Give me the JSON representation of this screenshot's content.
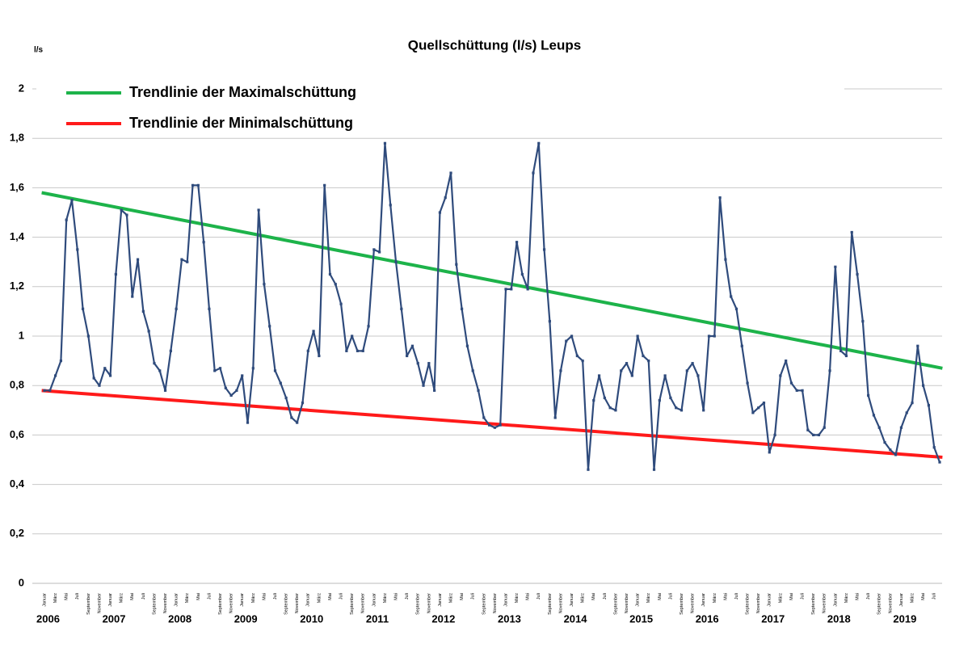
{
  "chart_data": {
    "type": "line",
    "title": "Quellschüttung (l/s) Leups",
    "y_label": "l/s",
    "categories": [
      "Januar",
      null,
      "März",
      null,
      "Mai",
      null,
      "Juli",
      null,
      "September",
      null,
      "November",
      null,
      "Januar",
      null,
      "März",
      null,
      "Mai",
      null,
      "Juli",
      null,
      "September",
      null,
      "November",
      null,
      "Januar",
      null,
      "März",
      null,
      "Mai",
      null,
      "Juli",
      null,
      "September",
      null,
      "November",
      null,
      "Januar",
      null,
      "März",
      null,
      "Mai",
      null,
      "Juli",
      null,
      "September",
      null,
      "November",
      null,
      "Januar",
      null,
      "März",
      null,
      "Mai",
      null,
      "Juli",
      null,
      "September",
      null,
      "November",
      null,
      "Januar",
      null,
      "März",
      null,
      "Mai",
      null,
      "Juli",
      null,
      "September",
      null,
      "November",
      null,
      "Januar",
      null,
      "März",
      null,
      "Mai",
      null,
      "Juli",
      null,
      "September",
      null,
      "November",
      null,
      "Januar",
      null,
      "März",
      null,
      "Mai",
      null,
      "Juli",
      null,
      "September",
      null,
      "November",
      null,
      "Januar",
      null,
      "März",
      null,
      "Mai",
      null,
      "Juli",
      null,
      "September",
      null,
      "November",
      null,
      "Januar",
      null,
      "März",
      null,
      "Mai",
      null,
      "Juli",
      null,
      "September",
      null,
      "November",
      null,
      "Januar",
      null,
      "März",
      null,
      "Mai",
      null,
      "Juli",
      null,
      "September",
      null,
      "November",
      null,
      "Januar",
      null,
      "März",
      null,
      "Mai",
      null,
      "Juli",
      null,
      "September",
      null,
      "November",
      null,
      "Januar",
      null,
      "März",
      null,
      "Mai",
      null,
      "Juli",
      null,
      "September",
      null,
      "November",
      null,
      "Januar",
      null,
      "März",
      null,
      "Mai",
      null,
      "Juli",
      null
    ],
    "year_labels": [
      "2006",
      "2007",
      "2008",
      "2009",
      "2010",
      "2011",
      "2012",
      "2013",
      "2014",
      "2015",
      "2016",
      "2017",
      "2018",
      "2019"
    ],
    "series": [
      {
        "color": "#2f4b7c",
        "values": [
          0.78,
          0.78,
          0.84,
          0.9,
          1.47,
          1.55,
          1.35,
          1.11,
          1.0,
          0.83,
          0.8,
          0.87,
          0.84,
          1.25,
          1.51,
          1.49,
          1.16,
          1.31,
          1.1,
          1.02,
          0.89,
          0.86,
          0.78,
          0.94,
          1.11,
          1.31,
          1.3,
          1.61,
          1.61,
          1.38,
          1.11,
          0.86,
          0.87,
          0.79,
          0.76,
          0.78,
          0.84,
          0.65,
          0.87,
          1.51,
          1.21,
          1.04,
          0.86,
          0.81,
          0.75,
          0.67,
          0.65,
          0.73,
          0.94,
          1.02,
          0.92,
          1.61,
          1.25,
          1.21,
          1.13,
          0.94,
          1.0,
          0.94,
          0.94,
          1.04,
          1.35,
          1.34,
          1.78,
          1.53,
          1.3,
          1.11,
          0.92,
          0.96,
          0.89,
          0.8,
          0.89,
          0.78,
          1.5,
          1.56,
          1.66,
          1.29,
          1.11,
          0.96,
          0.86,
          0.78,
          0.67,
          0.64,
          0.63,
          0.64,
          1.19,
          1.19,
          1.38,
          1.25,
          1.19,
          1.66,
          1.78,
          1.35,
          1.06,
          0.67,
          0.86,
          0.98,
          1.0,
          0.92,
          0.9,
          0.46,
          0.74,
          0.84,
          0.75,
          0.71,
          0.7,
          0.86,
          0.89,
          0.84,
          1.0,
          0.92,
          0.9,
          0.46,
          0.74,
          0.84,
          0.75,
          0.71,
          0.7,
          0.86,
          0.89,
          0.84,
          0.7,
          1.0,
          1.0,
          1.56,
          1.31,
          1.16,
          1.11,
          0.96,
          0.81,
          0.69,
          0.71,
          0.73,
          0.53,
          0.6,
          0.84,
          0.9,
          0.81,
          0.78,
          0.78,
          0.62,
          0.6,
          0.6,
          0.63,
          0.86,
          1.28,
          0.94,
          0.92,
          1.42,
          1.25,
          1.06,
          0.76,
          0.68,
          0.63,
          0.57,
          0.54,
          0.52,
          0.63,
          0.69,
          0.73,
          0.96,
          0.8,
          0.72,
          0.55,
          0.49
        ]
      }
    ],
    "trendlines": [
      {
        "name": "Trendlinie der Maximalschüttung",
        "color": "#1db34a",
        "values": [
          1.58,
          0.87
        ]
      },
      {
        "name": "Trendlinie der Minimalschüttung",
        "color": "#ff1a1a",
        "values": [
          0.78,
          0.51
        ]
      }
    ],
    "ylim": [
      0,
      2
    ],
    "yticks": [
      0,
      {
        "value": 0.2,
        "label": "0,2"
      },
      {
        "value": 0.4,
        "label": "0,4"
      },
      {
        "value": 0.6,
        "label": "0,6"
      },
      {
        "value": 0.8,
        "label": "0,8"
      },
      1,
      {
        "value": 1.2,
        "label": "1,2"
      },
      {
        "value": 1.4,
        "label": "1,4"
      },
      {
        "value": 1.6,
        "label": "1,6"
      },
      {
        "value": 1.8,
        "label": "1,8"
      },
      2
    ],
    "grid": true
  }
}
